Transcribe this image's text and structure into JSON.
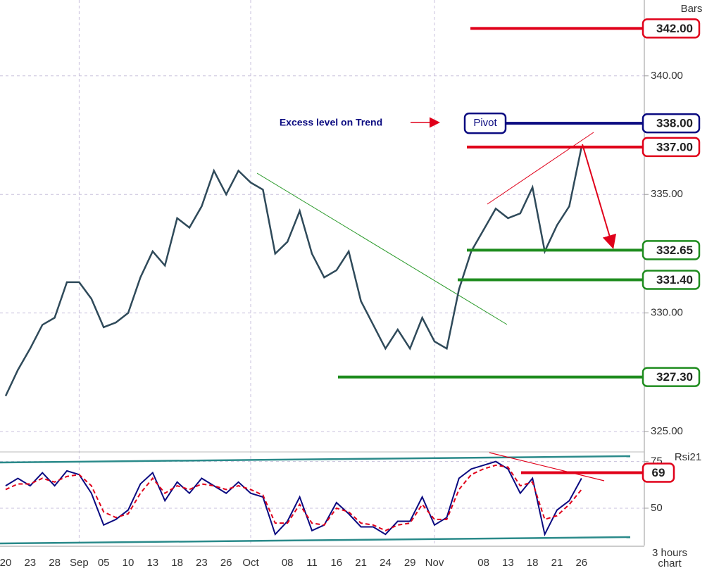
{
  "chart_data": [
    {
      "type": "line",
      "title": "Bars",
      "x_label": "3 hours chart",
      "annotations": [
        "Excess level on Trend"
      ],
      "categories": [
        "20",
        null,
        "23",
        null,
        "28",
        null,
        "Sep",
        null,
        "05",
        null,
        "10",
        null,
        "13",
        null,
        "18",
        null,
        "23",
        null,
        "26",
        null,
        "Oct",
        null,
        null,
        "08",
        null,
        "11",
        null,
        "16",
        null,
        "21",
        null,
        "24",
        null,
        "29",
        null,
        "Nov",
        null,
        null,
        null,
        "08",
        null,
        "13",
        null,
        "18",
        null,
        "21",
        null,
        "26"
      ],
      "series": [
        {
          "color": "#2f4a5a",
          "values": [
            326.5,
            327.6,
            328.5,
            329.5,
            329.8,
            331.3,
            331.3,
            330.6,
            329.4,
            329.6,
            330.0,
            331.5,
            332.6,
            332.0,
            334.0,
            333.6,
            334.5,
            336.0,
            335.0,
            336.0,
            335.5,
            335.2,
            332.5,
            333.0,
            334.3,
            332.5,
            331.5,
            331.8,
            332.6,
            330.5,
            329.5,
            328.5,
            329.3,
            328.5,
            329.8,
            328.8,
            328.5,
            331.0,
            332.6,
            333.5,
            334.4,
            334.0,
            334.2,
            335.3,
            332.6,
            333.7,
            334.5,
            337.0
          ]
        }
      ],
      "ylim": [
        324.2,
        343.2
      ],
      "yticks": [
        {
          "value": 325,
          "label": "325.00"
        },
        {
          "value": 330,
          "label": "330.00"
        },
        {
          "value": 335,
          "label": "335.00"
        },
        {
          "value": 340,
          "label": "340.00"
        }
      ],
      "grid": true,
      "levels": [
        {
          "value": 342,
          "label": "342.00",
          "color": "#e0001a"
        },
        {
          "value": 338,
          "label": "338.00",
          "color": "#0a0a80",
          "name": "Pivot"
        },
        {
          "value": 337,
          "label": "337.00",
          "color": "#e0001a"
        },
        {
          "value": 332.65,
          "label": "332.65",
          "color": "#1e8c1e"
        },
        {
          "value": 331.4,
          "label": "331.40",
          "color": "#1e8c1e"
        },
        {
          "value": 327.3,
          "label": "327.30",
          "color": "#1e8c1e"
        }
      ]
    },
    {
      "type": "line",
      "title": "Rsi21",
      "series": [
        {
          "color": "#0a0a80",
          "values": [
            62,
            66,
            62,
            69,
            62,
            70,
            68,
            58,
            41,
            44,
            49,
            63,
            69,
            54,
            64,
            58,
            66,
            62,
            58,
            64,
            58,
            56,
            36,
            43,
            56,
            38,
            41,
            53,
            47,
            40,
            40,
            36,
            43,
            43,
            56,
            41,
            45,
            66,
            71,
            73,
            75,
            71,
            58,
            66,
            36,
            49,
            54,
            66
          ]
        },
        {
          "color": "#e0001a",
          "dashed": true,
          "values": [
            60,
            63,
            63,
            66,
            64,
            67,
            68,
            62,
            48,
            45,
            47,
            58,
            66,
            58,
            62,
            60,
            63,
            62,
            60,
            62,
            60,
            57,
            42,
            42,
            52,
            42,
            41,
            50,
            48,
            42,
            41,
            38,
            41,
            42,
            52,
            44,
            44,
            60,
            68,
            71,
            73,
            72,
            62,
            64,
            44,
            46,
            52,
            60
          ]
        }
      ],
      "ylim": [
        30,
        79
      ],
      "yticks": [
        50,
        75
      ],
      "grid": true,
      "levels": [
        {
          "value": 69,
          "color": "#e0001a"
        }
      ]
    }
  ]
}
